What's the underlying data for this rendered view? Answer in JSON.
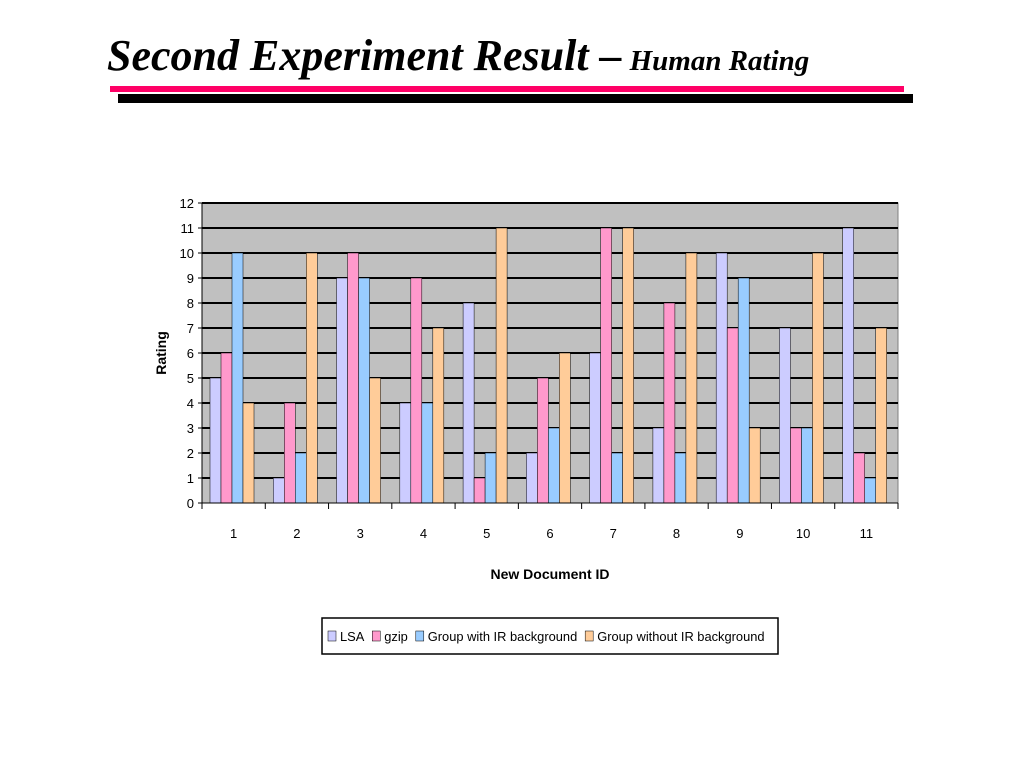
{
  "slide": {
    "title_main": "Second Experiment Result –",
    "title_sub": "Human Rating",
    "accent_color": "#ff0066",
    "rule_color": "#000000"
  },
  "chart_data": {
    "type": "bar",
    "xlabel": "New Document ID",
    "ylabel": "Rating",
    "ylim": [
      0,
      12
    ],
    "yticks": [
      0,
      1,
      2,
      3,
      4,
      5,
      6,
      7,
      8,
      9,
      10,
      11,
      12
    ],
    "grid": true,
    "plot_background": "#c0c0c0",
    "legend_position": "bottom",
    "categories": [
      "1",
      "2",
      "3",
      "4",
      "5",
      "6",
      "7",
      "8",
      "9",
      "10",
      "11"
    ],
    "series": [
      {
        "name": "LSA",
        "color": "#ccccff",
        "values": [
          5,
          1,
          9,
          4,
          8,
          2,
          6,
          3,
          10,
          7,
          11
        ]
      },
      {
        "name": "gzip",
        "color": "#ff99cc",
        "values": [
          6,
          4,
          10,
          9,
          1,
          5,
          11,
          8,
          7,
          3,
          2
        ]
      },
      {
        "name": "Group with IR background",
        "color": "#99ccff",
        "values": [
          10,
          2,
          9,
          4,
          2,
          3,
          2,
          2,
          9,
          3,
          1
        ]
      },
      {
        "name": "Group without IR background",
        "color": "#ffcc99",
        "values": [
          4,
          10,
          5,
          7,
          11,
          6,
          11,
          10,
          3,
          10,
          7
        ]
      }
    ]
  }
}
